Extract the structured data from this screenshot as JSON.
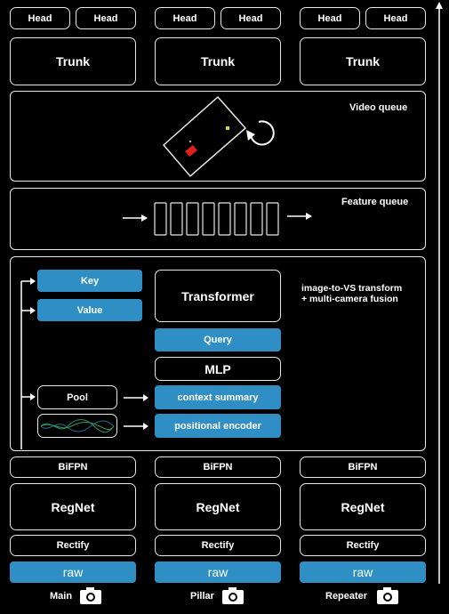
{
  "columns": [
    {
      "name": "Main",
      "head1": "Head",
      "head2": "Head",
      "trunk": "Trunk",
      "bifpn": "BiFPN",
      "regnet": "RegNet",
      "rectify": "Rectify",
      "raw": "raw"
    },
    {
      "name": "Pillar",
      "head1": "Head",
      "head2": "Head",
      "trunk": "Trunk",
      "bifpn": "BiFPN",
      "regnet": "RegNet",
      "rectify": "Rectify",
      "raw": "raw"
    },
    {
      "name": "Repeater",
      "head1": "Head",
      "head2": "Head",
      "trunk": "Trunk",
      "bifpn": "BiFPN",
      "regnet": "RegNet",
      "rectify": "Rectify",
      "raw": "raw"
    }
  ],
  "video_queue": {
    "label": "Video queue"
  },
  "feature_queue": {
    "label": "Feature queue"
  },
  "fusion": {
    "key": "Key",
    "value": "Value",
    "transformer": "Transformer",
    "query": "Query",
    "mlp": "MLP",
    "pool": "Pool",
    "context_summary": "context summary",
    "positional_encoder": "positional encoder",
    "caption_line1": "image-to-VS transform",
    "caption_line2": "+ multi-camera fusion"
  },
  "colors": {
    "accent_blue": "#2f8fc4",
    "car_red": "#e02020",
    "car_yellow": "#e8d030"
  },
  "icons": [
    "camera-icon",
    "rotate-arrow-icon",
    "right-arrow-icon",
    "up-arrow-icon"
  ]
}
